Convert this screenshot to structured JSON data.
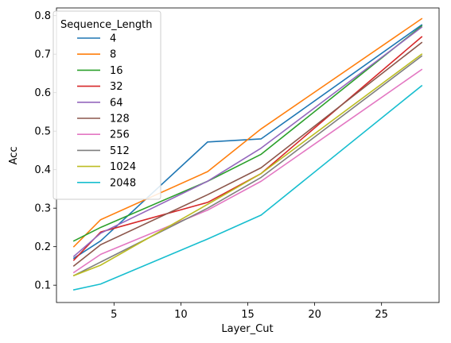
{
  "chart_data": {
    "type": "line",
    "title": "",
    "xlabel": "Layer_Cut",
    "ylabel": "Acc",
    "xlim": [
      0.7,
      29.3
    ],
    "ylim": [
      0.055,
      0.82
    ],
    "xticks": [
      5,
      10,
      15,
      20,
      25
    ],
    "yticks": [
      0.1,
      0.2,
      0.3,
      0.4,
      0.5,
      0.6,
      0.7,
      0.8
    ],
    "grid": false,
    "legend": {
      "title": "Sequence_Length",
      "placement": "upper-left"
    },
    "x": [
      2,
      4,
      12,
      16,
      28
    ],
    "series": [
      {
        "name": "4",
        "color": "#1f77b4",
        "values": [
          0.17,
          0.215,
          0.472,
          0.48,
          0.776
        ]
      },
      {
        "name": "8",
        "color": "#ff7f0e",
        "values": [
          0.2,
          0.27,
          0.395,
          0.506,
          0.792
        ]
      },
      {
        "name": "16",
        "color": "#2ca02c",
        "values": [
          0.215,
          0.25,
          0.37,
          0.44,
          0.773
        ]
      },
      {
        "name": "32",
        "color": "#d62728",
        "values": [
          0.165,
          0.238,
          0.315,
          0.39,
          0.745
        ]
      },
      {
        "name": "64",
        "color": "#9467bd",
        "values": [
          0.175,
          0.235,
          0.37,
          0.456,
          0.77
        ]
      },
      {
        "name": "128",
        "color": "#8c564b",
        "values": [
          0.15,
          0.205,
          0.335,
          0.405,
          0.73
        ]
      },
      {
        "name": "256",
        "color": "#e377c2",
        "values": [
          0.133,
          0.18,
          0.295,
          0.37,
          0.66
        ]
      },
      {
        "name": "512",
        "color": "#7f7f7f",
        "values": [
          0.125,
          0.16,
          0.3,
          0.38,
          0.695
        ]
      },
      {
        "name": "1024",
        "color": "#bcbd22",
        "values": [
          0.125,
          0.152,
          0.31,
          0.39,
          0.7
        ]
      },
      {
        "name": "2048",
        "color": "#17becf",
        "values": [
          0.088,
          0.103,
          0.22,
          0.282,
          0.618
        ]
      }
    ]
  }
}
